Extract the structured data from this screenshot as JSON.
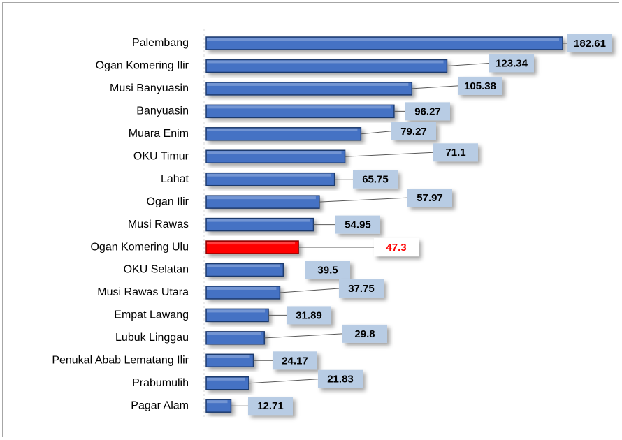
{
  "chart_data": {
    "type": "bar",
    "orientation": "horizontal",
    "categories": [
      "Palembang",
      "Ogan Komering Ilir",
      "Musi Banyuasin",
      "Banyuasin",
      "Muara Enim",
      "OKU Timur",
      "Lahat",
      "Ogan Ilir",
      "Musi Rawas",
      "Ogan Komering Ulu",
      "OKU Selatan",
      "Musi Rawas Utara",
      "Empat Lawang",
      "Lubuk Linggau",
      "Penukal Abab Lematang Ilir",
      "Prabumulih",
      "Pagar Alam"
    ],
    "values": [
      182.61,
      123.34,
      105.38,
      96.27,
      79.27,
      71.1,
      65.75,
      57.97,
      54.95,
      47.3,
      39.5,
      37.75,
      31.89,
      29.8,
      24.17,
      21.83,
      12.71
    ],
    "colors": [
      "#4472c4",
      "#4472c4",
      "#4472c4",
      "#4472c4",
      "#4472c4",
      "#4472c4",
      "#4472c4",
      "#4472c4",
      "#4472c4",
      "#ff0000",
      "#4472c4",
      "#4472c4",
      "#4472c4",
      "#4472c4",
      "#4472c4",
      "#4472c4",
      "#4472c4"
    ],
    "xlim": [
      0,
      200
    ]
  }
}
